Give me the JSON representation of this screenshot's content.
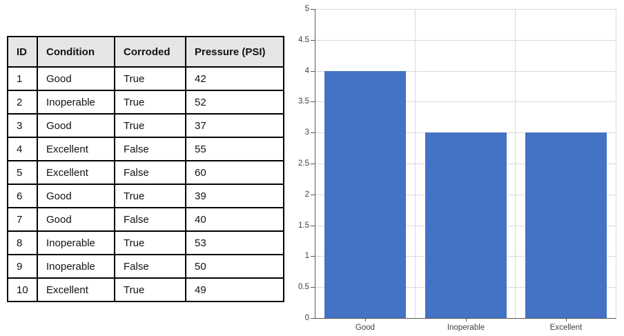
{
  "table": {
    "headers": [
      "ID",
      "Condition",
      "Corroded",
      "Pressure (PSI)"
    ],
    "rows": [
      [
        "1",
        "Good",
        "True",
        "42"
      ],
      [
        "2",
        "Inoperable",
        "True",
        "52"
      ],
      [
        "3",
        "Good",
        "True",
        "37"
      ],
      [
        "4",
        "Excellent",
        "False",
        "55"
      ],
      [
        "5",
        "Excellent",
        "False",
        "60"
      ],
      [
        "6",
        "Good",
        "True",
        "39"
      ],
      [
        "7",
        "Good",
        "False",
        "40"
      ],
      [
        "8",
        "Inoperable",
        "True",
        "53"
      ],
      [
        "9",
        "Inoperable",
        "False",
        "50"
      ],
      [
        "10",
        "Excellent",
        "True",
        "49"
      ]
    ],
    "header_bg": "#e7e6e6",
    "border_color": "#000000"
  },
  "chart_data": {
    "type": "bar",
    "categories": [
      "Good",
      "Inoperable",
      "Excellent"
    ],
    "values": [
      4,
      3,
      3
    ],
    "title": "",
    "xlabel": "",
    "ylabel": "",
    "ylim": [
      0,
      5
    ],
    "ytick_step": 0.5,
    "ytick_labels": [
      "0",
      "0.5",
      "1",
      "1.5",
      "2",
      "2.5",
      "3",
      "3.5",
      "4",
      "4.5",
      "5"
    ],
    "grid": true,
    "legend_position": "none",
    "bar_color": "#4472c4",
    "gridline_color": "#d9d9d9",
    "axis_color": "#595959"
  }
}
